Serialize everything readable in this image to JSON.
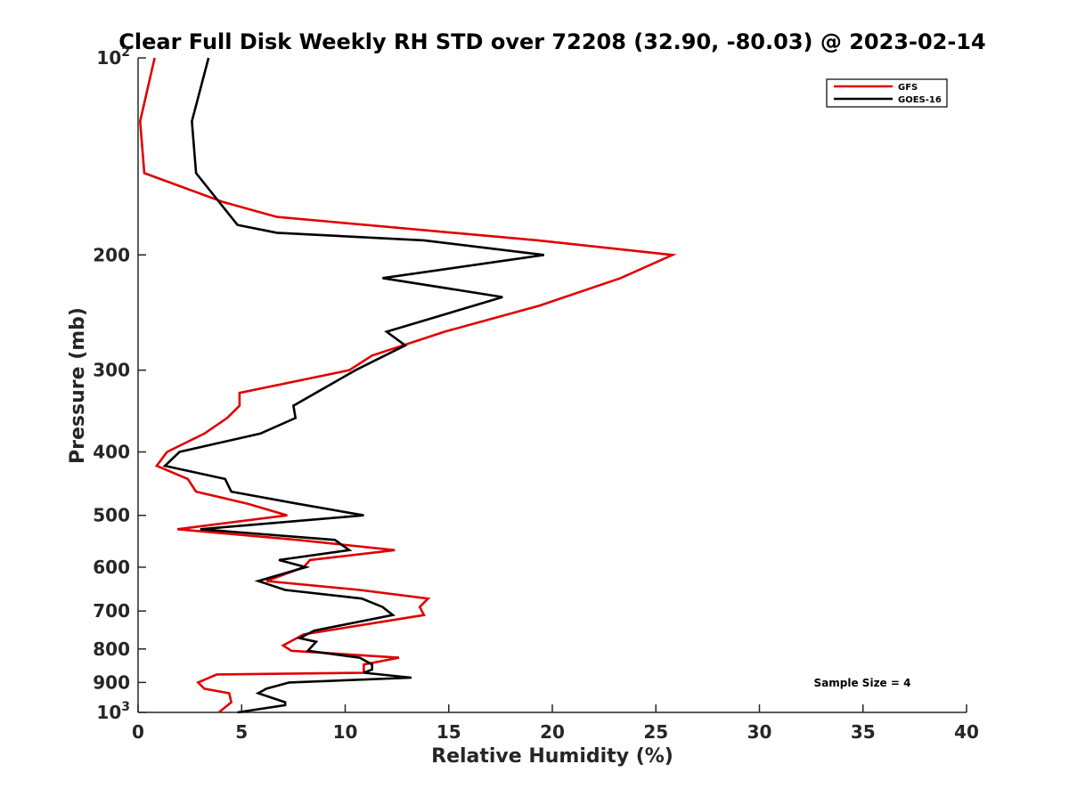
{
  "chart_data": {
    "type": "line",
    "title": "Clear Full Disk Weekly RH STD over 72208 (32.90, -80.03) @ 2023-02-14",
    "xlabel": "Relative Humidity (%)",
    "ylabel": "Pressure (mb)",
    "xlim": [
      0,
      40
    ],
    "ylim": [
      100,
      1000
    ],
    "y_scale": "log",
    "y_reversed": true,
    "grid": false,
    "legend_position": "top-right",
    "x_ticks": [
      "0",
      "5",
      "10",
      "15",
      "20",
      "25",
      "30",
      "35",
      "40"
    ],
    "y_ticks": [
      {
        "value": 100,
        "base": "10",
        "exp": "2"
      },
      {
        "value": 200,
        "label": "200"
      },
      {
        "value": 300,
        "label": "300"
      },
      {
        "value": 400,
        "label": "400"
      },
      {
        "value": 500,
        "label": "500"
      },
      {
        "value": 600,
        "label": "600"
      },
      {
        "value": 700,
        "label": "700"
      },
      {
        "value": 800,
        "label": "800"
      },
      {
        "value": 900,
        "label": "900"
      },
      {
        "value": 1000,
        "base": "10",
        "exp": "3"
      }
    ],
    "annotation": "Sample Size = 4",
    "series": [
      {
        "name": "GFS",
        "color": "#e00000",
        "points": [
          [
            0.8,
            100
          ],
          [
            0.1,
            125
          ],
          [
            0.3,
            150
          ],
          [
            4.1,
            166
          ],
          [
            6.7,
            175
          ],
          [
            19.3,
            190
          ],
          [
            25.8,
            200
          ],
          [
            23.3,
            217
          ],
          [
            19.4,
            239
          ],
          [
            14.8,
            262
          ],
          [
            11.3,
            285
          ],
          [
            10.2,
            300
          ],
          [
            4.9,
            325
          ],
          [
            4.9,
            340
          ],
          [
            4.3,
            355
          ],
          [
            3.2,
            375
          ],
          [
            1.4,
            400
          ],
          [
            0.9,
            420
          ],
          [
            2.4,
            440
          ],
          [
            2.8,
            460
          ],
          [
            5.3,
            480
          ],
          [
            7.2,
            500
          ],
          [
            1.9,
            525
          ],
          [
            7.7,
            545
          ],
          [
            12.4,
            565
          ],
          [
            8.3,
            585
          ],
          [
            8.0,
            600
          ],
          [
            6.2,
            630
          ],
          [
            10.7,
            650
          ],
          [
            14.0,
            670
          ],
          [
            13.6,
            690
          ],
          [
            13.8,
            710
          ],
          [
            8.0,
            760
          ],
          [
            7.0,
            790
          ],
          [
            7.4,
            805
          ],
          [
            12.6,
            825
          ],
          [
            10.9,
            845
          ],
          [
            10.9,
            870
          ],
          [
            3.8,
            875
          ],
          [
            2.9,
            900
          ],
          [
            3.2,
            920
          ],
          [
            4.4,
            935
          ],
          [
            4.5,
            965
          ],
          [
            3.9,
            1000
          ]
        ]
      },
      {
        "name": "GOES-16",
        "color": "#000000",
        "points": [
          [
            3.4,
            100
          ],
          [
            2.6,
            125
          ],
          [
            2.8,
            150
          ],
          [
            4.8,
            180
          ],
          [
            6.7,
            185
          ],
          [
            13.8,
            190
          ],
          [
            19.6,
            200
          ],
          [
            11.8,
            217
          ],
          [
            17.6,
            232
          ],
          [
            12.0,
            262
          ],
          [
            12.9,
            275
          ],
          [
            10.5,
            300
          ],
          [
            7.5,
            340
          ],
          [
            7.6,
            355
          ],
          [
            5.9,
            375
          ],
          [
            2.0,
            400
          ],
          [
            1.3,
            420
          ],
          [
            4.2,
            440
          ],
          [
            4.5,
            460
          ],
          [
            7.7,
            480
          ],
          [
            10.9,
            500
          ],
          [
            3.0,
            525
          ],
          [
            9.5,
            545
          ],
          [
            10.2,
            565
          ],
          [
            6.8,
            585
          ],
          [
            8.1,
            600
          ],
          [
            5.8,
            630
          ],
          [
            7.1,
            650
          ],
          [
            10.8,
            670
          ],
          [
            11.8,
            690
          ],
          [
            12.3,
            710
          ],
          [
            8.5,
            750
          ],
          [
            7.8,
            770
          ],
          [
            8.6,
            780
          ],
          [
            8.2,
            805
          ],
          [
            10.7,
            825
          ],
          [
            11.3,
            845
          ],
          [
            11.3,
            860
          ],
          [
            10.9,
            870
          ],
          [
            13.2,
            885
          ],
          [
            7.3,
            900
          ],
          [
            6.2,
            920
          ],
          [
            5.8,
            935
          ],
          [
            7.1,
            965
          ],
          [
            7.1,
            975
          ],
          [
            4.8,
            1000
          ]
        ]
      }
    ]
  }
}
